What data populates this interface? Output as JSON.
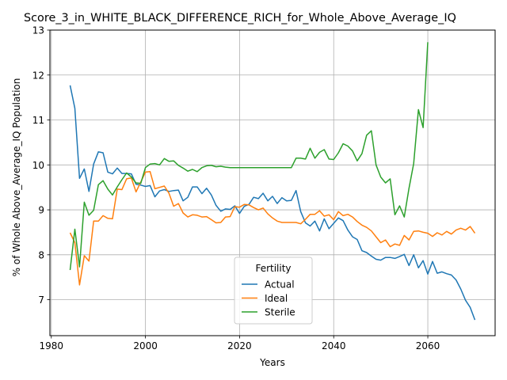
{
  "chart_data": {
    "type": "line",
    "title": "Score_3_in_WHITE_BLACK_DIFFERENCE_RICH_for_Whole_Above_Average_IQ",
    "xlabel": "Years",
    "ylabel": "% of Whole Above_Average_IQ Population",
    "xlim": [
      1979.7,
      2074.3
    ],
    "ylim": [
      6.2,
      13.0
    ],
    "xticks": [
      1980,
      2000,
      2020,
      2040,
      2060
    ],
    "yticks": [
      7,
      8,
      9,
      10,
      11,
      12,
      13
    ],
    "grid": true,
    "legend": {
      "title": "Fertility",
      "placement": "lower center"
    },
    "series": [
      {
        "name": "Actual",
        "color": "#1f77b4",
        "points": [
          [
            1984,
            11.77
          ],
          [
            1985,
            11.26
          ],
          [
            1986,
            9.7
          ],
          [
            1987,
            9.91
          ],
          [
            1988,
            9.41
          ],
          [
            1989,
            10.02
          ],
          [
            1990,
            10.29
          ],
          [
            1991,
            10.27
          ],
          [
            1992,
            9.84
          ],
          [
            1993,
            9.8
          ],
          [
            1994,
            9.93
          ],
          [
            1995,
            9.81
          ],
          [
            1996,
            9.81
          ],
          [
            1997,
            9.8
          ],
          [
            1998,
            9.57
          ],
          [
            1999,
            9.55
          ],
          [
            2000,
            9.52
          ],
          [
            2001,
            9.54
          ],
          [
            2002,
            9.29
          ],
          [
            2003,
            9.42
          ],
          [
            2004,
            9.45
          ],
          [
            2005,
            9.41
          ],
          [
            2006,
            9.43
          ],
          [
            2007,
            9.44
          ],
          [
            2008,
            9.2
          ],
          [
            2009,
            9.28
          ],
          [
            2010,
            9.51
          ],
          [
            2011,
            9.51
          ],
          [
            2012,
            9.36
          ],
          [
            2013,
            9.48
          ],
          [
            2014,
            9.33
          ],
          [
            2015,
            9.1
          ],
          [
            2016,
            8.97
          ],
          [
            2017,
            9.02
          ],
          [
            2018,
            9.01
          ],
          [
            2019,
            9.09
          ],
          [
            2020,
            8.92
          ],
          [
            2021,
            9.08
          ],
          [
            2022,
            9.12
          ],
          [
            2023,
            9.28
          ],
          [
            2024,
            9.25
          ],
          [
            2025,
            9.37
          ],
          [
            2026,
            9.2
          ],
          [
            2027,
            9.3
          ],
          [
            2028,
            9.14
          ],
          [
            2029,
            9.27
          ],
          [
            2030,
            9.2
          ],
          [
            2031,
            9.21
          ],
          [
            2032,
            9.43
          ],
          [
            2033,
            8.96
          ],
          [
            2034,
            8.71
          ],
          [
            2035,
            8.64
          ],
          [
            2036,
            8.75
          ],
          [
            2037,
            8.53
          ],
          [
            2038,
            8.8
          ],
          [
            2039,
            8.58
          ],
          [
            2040,
            8.7
          ],
          [
            2041,
            8.82
          ],
          [
            2042,
            8.76
          ],
          [
            2043,
            8.55
          ],
          [
            2044,
            8.4
          ],
          [
            2045,
            8.34
          ],
          [
            2046,
            8.09
          ],
          [
            2047,
            8.05
          ],
          [
            2048,
            7.97
          ],
          [
            2049,
            7.9
          ],
          [
            2050,
            7.88
          ],
          [
            2051,
            7.94
          ],
          [
            2052,
            7.94
          ],
          [
            2053,
            7.92
          ],
          [
            2054,
            7.96
          ],
          [
            2055,
            8.01
          ],
          [
            2056,
            7.76
          ],
          [
            2057,
            8.0
          ],
          [
            2058,
            7.71
          ],
          [
            2059,
            7.87
          ],
          [
            2060,
            7.57
          ],
          [
            2061,
            7.85
          ],
          [
            2062,
            7.59
          ],
          [
            2063,
            7.62
          ],
          [
            2064,
            7.58
          ],
          [
            2065,
            7.55
          ],
          [
            2066,
            7.44
          ],
          [
            2067,
            7.24
          ],
          [
            2068,
            6.99
          ],
          [
            2069,
            6.83
          ],
          [
            2070,
            6.55
          ]
        ]
      },
      {
        "name": "Ideal",
        "color": "#ff7f0e",
        "points": [
          [
            1984,
            8.49
          ],
          [
            1985,
            8.27
          ],
          [
            1986,
            7.33
          ],
          [
            1987,
            7.98
          ],
          [
            1988,
            7.86
          ],
          [
            1989,
            8.75
          ],
          [
            1990,
            8.75
          ],
          [
            1991,
            8.87
          ],
          [
            1992,
            8.81
          ],
          [
            1993,
            8.8
          ],
          [
            1994,
            9.46
          ],
          [
            1995,
            9.45
          ],
          [
            1996,
            9.69
          ],
          [
            1997,
            9.71
          ],
          [
            1998,
            9.4
          ],
          [
            1999,
            9.62
          ],
          [
            2000,
            9.84
          ],
          [
            2001,
            9.85
          ],
          [
            2002,
            9.47
          ],
          [
            2003,
            9.5
          ],
          [
            2004,
            9.53
          ],
          [
            2005,
            9.37
          ],
          [
            2006,
            9.08
          ],
          [
            2007,
            9.14
          ],
          [
            2008,
            8.93
          ],
          [
            2009,
            8.84
          ],
          [
            2010,
            8.89
          ],
          [
            2011,
            8.88
          ],
          [
            2012,
            8.84
          ],
          [
            2013,
            8.85
          ],
          [
            2014,
            8.78
          ],
          [
            2015,
            8.71
          ],
          [
            2016,
            8.72
          ],
          [
            2017,
            8.84
          ],
          [
            2018,
            8.85
          ],
          [
            2019,
            9.07
          ],
          [
            2020,
            9.06
          ],
          [
            2021,
            9.12
          ],
          [
            2022,
            9.11
          ],
          [
            2023,
            9.05
          ],
          [
            2024,
            9.0
          ],
          [
            2025,
            9.04
          ],
          [
            2026,
            8.91
          ],
          [
            2027,
            8.82
          ],
          [
            2028,
            8.75
          ],
          [
            2029,
            8.72
          ],
          [
            2030,
            8.72
          ],
          [
            2031,
            8.72
          ],
          [
            2032,
            8.72
          ],
          [
            2033,
            8.69
          ],
          [
            2034,
            8.79
          ],
          [
            2035,
            8.9
          ],
          [
            2036,
            8.9
          ],
          [
            2037,
            8.98
          ],
          [
            2038,
            8.86
          ],
          [
            2039,
            8.89
          ],
          [
            2040,
            8.78
          ],
          [
            2041,
            8.96
          ],
          [
            2042,
            8.87
          ],
          [
            2043,
            8.9
          ],
          [
            2044,
            8.84
          ],
          [
            2045,
            8.74
          ],
          [
            2046,
            8.66
          ],
          [
            2047,
            8.61
          ],
          [
            2048,
            8.53
          ],
          [
            2049,
            8.4
          ],
          [
            2050,
            8.27
          ],
          [
            2051,
            8.33
          ],
          [
            2052,
            8.18
          ],
          [
            2053,
            8.24
          ],
          [
            2054,
            8.21
          ],
          [
            2055,
            8.43
          ],
          [
            2056,
            8.33
          ],
          [
            2057,
            8.52
          ],
          [
            2058,
            8.53
          ],
          [
            2059,
            8.5
          ],
          [
            2060,
            8.48
          ],
          [
            2061,
            8.41
          ],
          [
            2062,
            8.49
          ],
          [
            2063,
            8.44
          ],
          [
            2064,
            8.52
          ],
          [
            2065,
            8.46
          ],
          [
            2066,
            8.55
          ],
          [
            2067,
            8.59
          ],
          [
            2068,
            8.55
          ],
          [
            2069,
            8.63
          ],
          [
            2070,
            8.48
          ]
        ]
      },
      {
        "name": "Sterile",
        "color": "#2ca02c",
        "points": [
          [
            1984,
            7.66
          ],
          [
            1985,
            8.57
          ],
          [
            1986,
            7.73
          ],
          [
            1987,
            9.17
          ],
          [
            1988,
            8.88
          ],
          [
            1989,
            8.99
          ],
          [
            1990,
            9.56
          ],
          [
            1991,
            9.65
          ],
          [
            1992,
            9.46
          ],
          [
            1993,
            9.33
          ],
          [
            1994,
            9.51
          ],
          [
            1995,
            9.67
          ],
          [
            1996,
            9.82
          ],
          [
            1997,
            9.73
          ],
          [
            1998,
            9.6
          ],
          [
            1999,
            9.59
          ],
          [
            2000,
            9.94
          ],
          [
            2001,
            10.02
          ],
          [
            2002,
            10.03
          ],
          [
            2003,
            10.0
          ],
          [
            2004,
            10.14
          ],
          [
            2005,
            10.08
          ],
          [
            2006,
            10.09
          ],
          [
            2007,
            9.99
          ],
          [
            2008,
            9.93
          ],
          [
            2009,
            9.86
          ],
          [
            2010,
            9.9
          ],
          [
            2011,
            9.85
          ],
          [
            2012,
            9.94
          ],
          [
            2013,
            9.98
          ],
          [
            2014,
            9.99
          ],
          [
            2015,
            9.96
          ],
          [
            2016,
            9.97
          ],
          [
            2017,
            9.95
          ],
          [
            2018,
            9.94
          ],
          [
            2019,
            9.94
          ],
          [
            2020,
            9.94
          ],
          [
            2021,
            9.94
          ],
          [
            2022,
            9.94
          ],
          [
            2023,
            9.94
          ],
          [
            2024,
            9.94
          ],
          [
            2025,
            9.94
          ],
          [
            2026,
            9.94
          ],
          [
            2027,
            9.94
          ],
          [
            2028,
            9.94
          ],
          [
            2029,
            9.94
          ],
          [
            2030,
            9.94
          ],
          [
            2031,
            9.94
          ],
          [
            2032,
            10.15
          ],
          [
            2033,
            10.15
          ],
          [
            2034,
            10.13
          ],
          [
            2035,
            10.37
          ],
          [
            2036,
            10.15
          ],
          [
            2037,
            10.28
          ],
          [
            2038,
            10.34
          ],
          [
            2039,
            10.13
          ],
          [
            2040,
            10.12
          ],
          [
            2041,
            10.27
          ],
          [
            2042,
            10.47
          ],
          [
            2043,
            10.42
          ],
          [
            2044,
            10.31
          ],
          [
            2045,
            10.09
          ],
          [
            2046,
            10.25
          ],
          [
            2047,
            10.66
          ],
          [
            2048,
            10.76
          ],
          [
            2049,
            10.0
          ],
          [
            2050,
            9.73
          ],
          [
            2051,
            9.6
          ],
          [
            2052,
            9.69
          ],
          [
            2053,
            8.89
          ],
          [
            2054,
            9.09
          ],
          [
            2055,
            8.84
          ],
          [
            2056,
            9.48
          ],
          [
            2057,
            10.03
          ],
          [
            2058,
            11.23
          ],
          [
            2059,
            10.83
          ],
          [
            2060,
            12.73
          ]
        ]
      }
    ]
  }
}
